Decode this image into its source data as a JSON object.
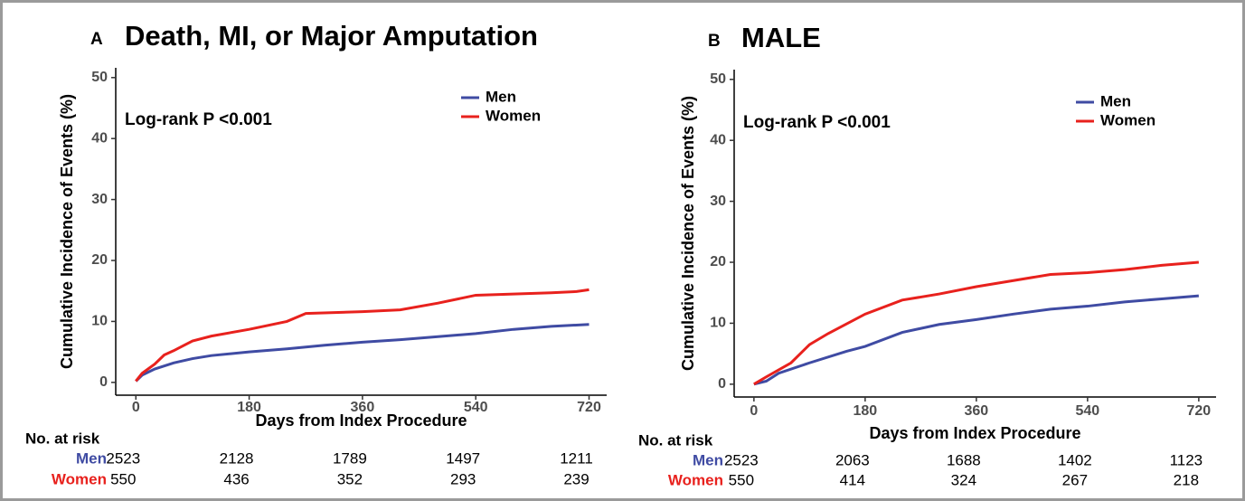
{
  "chart_data": [
    {
      "type": "line",
      "panel": "A",
      "title": "Death, MI, or Major Amputation",
      "annotation": "Log-rank P <0.001",
      "x_label": "Days from Index Procedure",
      "y_label": "Cumulative Incidence of Events (%)",
      "xlim": [
        -32,
        748
      ],
      "ylim": [
        -2.1,
        51.6
      ],
      "xticks": [
        0,
        180,
        360,
        540,
        720
      ],
      "yticks": [
        0,
        10,
        20,
        30,
        40,
        50
      ],
      "grid": false,
      "legend": "top-right",
      "series": [
        {
          "name": "Men",
          "color": "#3f4ba3",
          "x": [
            0,
            10,
            30,
            60,
            90,
            120,
            180,
            240,
            300,
            360,
            420,
            480,
            540,
            600,
            660,
            720
          ],
          "values": [
            0.2,
            1.2,
            2.2,
            3.2,
            3.9,
            4.4,
            5.0,
            5.5,
            6.1,
            6.6,
            7.0,
            7.5,
            8.0,
            8.7,
            9.2,
            9.5
          ]
        },
        {
          "name": "Women",
          "color": "#e8211d",
          "x": [
            0,
            10,
            30,
            45,
            60,
            90,
            120,
            180,
            240,
            270,
            360,
            420,
            480,
            540,
            660,
            700,
            720
          ],
          "values": [
            0.2,
            1.5,
            3.0,
            4.5,
            5.2,
            6.8,
            7.6,
            8.7,
            10.0,
            11.3,
            11.6,
            11.9,
            13.0,
            14.3,
            14.7,
            14.9,
            15.2
          ]
        }
      ],
      "risk_table": {
        "title": "No. at risk",
        "rows": [
          {
            "name": "Men",
            "color": "#3f4ba3",
            "values": [
              2523,
              2128,
              1789,
              1497,
              1211
            ]
          },
          {
            "name": "Women",
            "color": "#e8211d",
            "values": [
              550,
              436,
              352,
              293,
              239
            ]
          }
        ]
      }
    },
    {
      "type": "line",
      "panel": "B",
      "title": "MALE",
      "annotation": "Log-rank P <0.001",
      "x_label": "Days from Index Procedure",
      "y_label": "Cumulative Incidence of Events (%)",
      "xlim": [
        -32,
        748
      ],
      "ylim": [
        -2.1,
        51.6
      ],
      "xticks": [
        0,
        180,
        360,
        540,
        720
      ],
      "yticks": [
        0,
        10,
        20,
        30,
        40,
        50
      ],
      "grid": false,
      "legend": "top-right",
      "series": [
        {
          "name": "Men",
          "color": "#3f4ba3",
          "x": [
            0,
            20,
            40,
            90,
            150,
            180,
            240,
            300,
            360,
            420,
            480,
            540,
            600,
            660,
            720
          ],
          "values": [
            0,
            0.5,
            1.8,
            3.5,
            5.4,
            6.2,
            8.5,
            9.8,
            10.6,
            11.5,
            12.3,
            12.8,
            13.5,
            14.0,
            14.5
          ]
        },
        {
          "name": "Women",
          "color": "#e8211d",
          "x": [
            0,
            20,
            60,
            90,
            120,
            180,
            240,
            300,
            360,
            420,
            480,
            540,
            600,
            660,
            720
          ],
          "values": [
            0,
            1.2,
            3.5,
            6.5,
            8.3,
            11.5,
            13.8,
            14.8,
            16.0,
            17.0,
            18.0,
            18.3,
            18.8,
            19.5,
            20.0
          ]
        }
      ],
      "risk_table": {
        "title": "No. at risk",
        "rows": [
          {
            "name": "Men",
            "color": "#3f4ba3",
            "values": [
              2523,
              2063,
              1688,
              1402,
              1123
            ]
          },
          {
            "name": "Women",
            "color": "#e8211d",
            "values": [
              550,
              414,
              324,
              267,
              218
            ]
          }
        ]
      }
    }
  ]
}
